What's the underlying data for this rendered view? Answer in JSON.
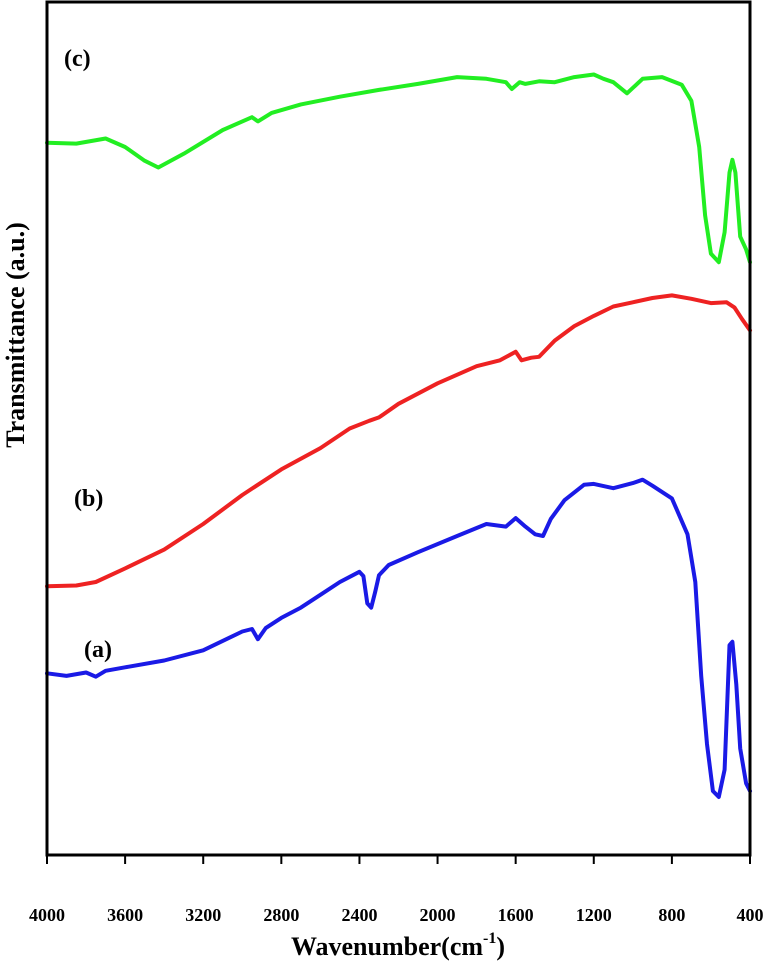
{
  "chart_data": {
    "type": "line",
    "xlabel": "Wavenumber(cm",
    "xlabel_sup": "-1",
    "xlabel_close": ")",
    "ylabel": "Transmittance (a.u.)",
    "xlim": [
      4000,
      400
    ],
    "x_reversed": true,
    "ylim": [
      0,
      100
    ],
    "y_ticks_shown": false,
    "grid": false,
    "x_ticks": [
      "4000",
      "3600",
      "3200",
      "2800",
      "2400",
      "2000",
      "1600",
      "1200",
      "800",
      "400"
    ],
    "annotations": [
      "(c)",
      "(b)",
      "(a)"
    ],
    "series": [
      {
        "label": "(c)",
        "color": "#22ee22",
        "points": [
          [
            4000,
            83.5
          ],
          [
            3850,
            83.4
          ],
          [
            3700,
            84.0
          ],
          [
            3600,
            83.0
          ],
          [
            3500,
            81.4
          ],
          [
            3430,
            80.6
          ],
          [
            3300,
            82.2
          ],
          [
            3100,
            85.0
          ],
          [
            2950,
            86.5
          ],
          [
            2920,
            86.0
          ],
          [
            2850,
            87.0
          ],
          [
            2700,
            88.0
          ],
          [
            2500,
            88.9
          ],
          [
            2300,
            89.7
          ],
          [
            2100,
            90.4
          ],
          [
            1900,
            91.2
          ],
          [
            1750,
            91.0
          ],
          [
            1650,
            90.6
          ],
          [
            1620,
            89.8
          ],
          [
            1580,
            90.6
          ],
          [
            1550,
            90.4
          ],
          [
            1480,
            90.7
          ],
          [
            1400,
            90.6
          ],
          [
            1300,
            91.2
          ],
          [
            1200,
            91.5
          ],
          [
            1150,
            91.0
          ],
          [
            1100,
            90.6
          ],
          [
            1030,
            89.3
          ],
          [
            950,
            91.0
          ],
          [
            850,
            91.2
          ],
          [
            750,
            90.3
          ],
          [
            700,
            88.4
          ],
          [
            660,
            83.0
          ],
          [
            630,
            75.0
          ],
          [
            600,
            70.5
          ],
          [
            560,
            69.5
          ],
          [
            530,
            73.0
          ],
          [
            505,
            80.0
          ],
          [
            490,
            81.5
          ],
          [
            475,
            80.0
          ],
          [
            450,
            72.5
          ],
          [
            420,
            71.0
          ],
          [
            400,
            69.5
          ]
        ]
      },
      {
        "label": "(b)",
        "color": "#ee2222",
        "points": [
          [
            4000,
            31.5
          ],
          [
            3850,
            31.6
          ],
          [
            3750,
            32.0
          ],
          [
            3600,
            33.6
          ],
          [
            3400,
            35.8
          ],
          [
            3200,
            38.8
          ],
          [
            3000,
            42.2
          ],
          [
            2800,
            45.2
          ],
          [
            2600,
            47.7
          ],
          [
            2450,
            50.0
          ],
          [
            2350,
            50.9
          ],
          [
            2300,
            51.3
          ],
          [
            2200,
            52.9
          ],
          [
            2000,
            55.3
          ],
          [
            1800,
            57.3
          ],
          [
            1680,
            58.0
          ],
          [
            1600,
            59.0
          ],
          [
            1570,
            58.0
          ],
          [
            1520,
            58.3
          ],
          [
            1480,
            58.4
          ],
          [
            1400,
            60.3
          ],
          [
            1300,
            62.0
          ],
          [
            1200,
            63.2
          ],
          [
            1100,
            64.3
          ],
          [
            1000,
            64.8
          ],
          [
            900,
            65.3
          ],
          [
            800,
            65.6
          ],
          [
            700,
            65.2
          ],
          [
            600,
            64.7
          ],
          [
            520,
            64.8
          ],
          [
            480,
            64.2
          ],
          [
            440,
            62.8
          ],
          [
            400,
            61.5
          ]
        ]
      },
      {
        "label": "(a)",
        "color": "#1a1ae6",
        "points": [
          [
            4000,
            21.3
          ],
          [
            3900,
            21.0
          ],
          [
            3800,
            21.4
          ],
          [
            3750,
            20.9
          ],
          [
            3700,
            21.6
          ],
          [
            3600,
            22.0
          ],
          [
            3400,
            22.8
          ],
          [
            3200,
            24.0
          ],
          [
            3000,
            26.2
          ],
          [
            2950,
            26.5
          ],
          [
            2920,
            25.3
          ],
          [
            2880,
            26.6
          ],
          [
            2800,
            27.8
          ],
          [
            2700,
            29.0
          ],
          [
            2600,
            30.5
          ],
          [
            2500,
            32.0
          ],
          [
            2400,
            33.2
          ],
          [
            2380,
            32.7
          ],
          [
            2360,
            29.5
          ],
          [
            2340,
            29.0
          ],
          [
            2320,
            30.8
          ],
          [
            2300,
            32.8
          ],
          [
            2250,
            34.0
          ],
          [
            2100,
            35.5
          ],
          [
            1900,
            37.4
          ],
          [
            1750,
            38.8
          ],
          [
            1650,
            38.5
          ],
          [
            1600,
            39.5
          ],
          [
            1550,
            38.5
          ],
          [
            1500,
            37.6
          ],
          [
            1460,
            37.4
          ],
          [
            1420,
            39.4
          ],
          [
            1350,
            41.6
          ],
          [
            1250,
            43.4
          ],
          [
            1200,
            43.5
          ],
          [
            1100,
            43.0
          ],
          [
            1000,
            43.6
          ],
          [
            950,
            44.0
          ],
          [
            900,
            43.3
          ],
          [
            800,
            41.8
          ],
          [
            720,
            37.6
          ],
          [
            680,
            32.0
          ],
          [
            650,
            21.0
          ],
          [
            620,
            13.0
          ],
          [
            590,
            7.5
          ],
          [
            560,
            6.8
          ],
          [
            530,
            10.0
          ],
          [
            505,
            24.6
          ],
          [
            490,
            25.0
          ],
          [
            470,
            20.0
          ],
          [
            450,
            12.5
          ],
          [
            420,
            8.4
          ],
          [
            400,
            7.5
          ]
        ]
      }
    ]
  }
}
